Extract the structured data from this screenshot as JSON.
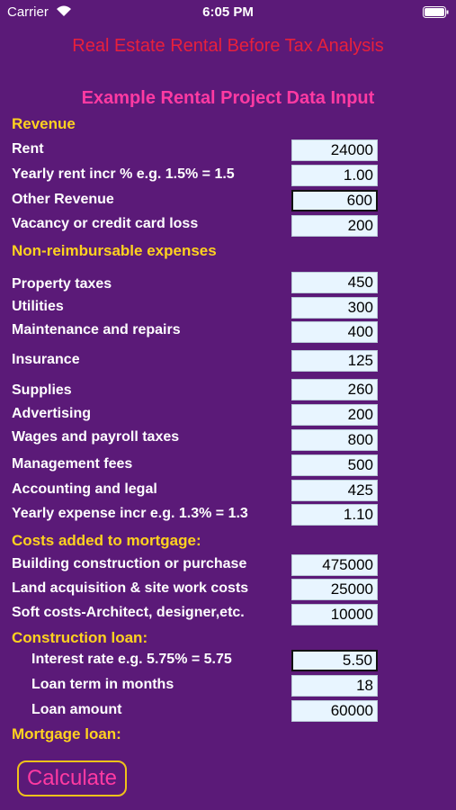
{
  "status_bar": {
    "carrier": "Carrier",
    "time": "6:05 PM"
  },
  "header": {
    "title": "Real Estate Rental Before Tax Analysis",
    "subtitle": "Example Rental Project Data Input"
  },
  "sections": [
    {
      "heading": "Revenue",
      "fields": [
        {
          "label": "Rent",
          "value": "24000"
        },
        {
          "label": "Yearly rent incr % e.g. 1.5% = 1.5",
          "value": "1.00"
        },
        {
          "label": "Other Revenue",
          "value": "600"
        },
        {
          "label": "Vacancy or credit card loss",
          "value": "200"
        }
      ]
    },
    {
      "heading": "Non-reimbursable expenses",
      "fields": [
        {
          "label": "Property taxes",
          "value": "450"
        },
        {
          "label": "Utilities",
          "value": "300"
        },
        {
          "label": "Maintenance and repairs",
          "value": "400"
        },
        {
          "label": "Insurance",
          "value": "125"
        },
        {
          "label": "Supplies",
          "value": "260"
        },
        {
          "label": "Advertising",
          "value": "200"
        },
        {
          "label": "Wages and payroll taxes",
          "value": "800"
        },
        {
          "label": "Management fees",
          "value": "500"
        },
        {
          "label": "Accounting and legal",
          "value": "425"
        },
        {
          "label": "Yearly expense incr e.g. 1.3% = 1.3",
          "value": "1.10"
        }
      ]
    },
    {
      "heading": "Costs added to mortgage:",
      "fields": [
        {
          "label": "Building construction or purchase",
          "value": "475000"
        },
        {
          "label": "Land acquisition & site work costs",
          "value": "25000"
        },
        {
          "label": "Soft costs-Architect, designer,etc.",
          "value": "10000"
        }
      ]
    },
    {
      "heading": "Construction loan:",
      "fields": [
        {
          "label": "Interest rate e.g. 5.75% = 5.75",
          "value": "5.50"
        },
        {
          "label": "Loan term in months",
          "value": "18"
        },
        {
          "label": "Loan amount",
          "value": "60000"
        }
      ]
    },
    {
      "heading": "Mortgage loan:",
      "fields": []
    }
  ],
  "button": "Calculate"
}
